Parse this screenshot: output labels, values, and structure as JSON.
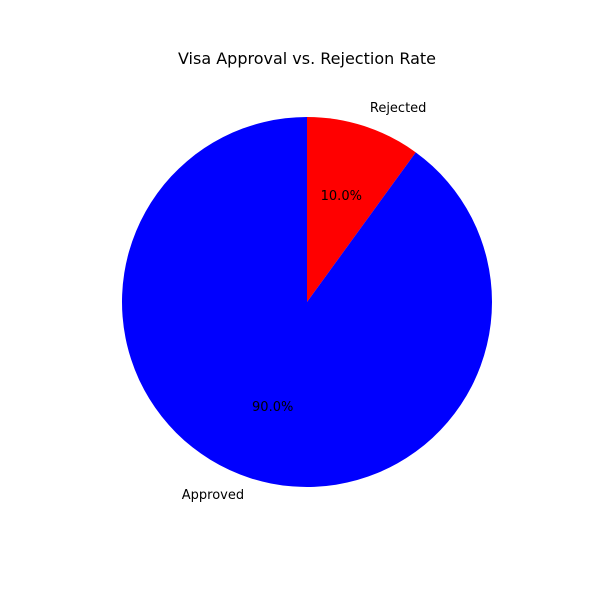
{
  "chart_data": {
    "type": "pie",
    "title": "Visa Approval vs. Rejection Rate",
    "categories": [
      "Rejected",
      "Approved"
    ],
    "values": [
      10.0,
      90.0
    ],
    "percent_labels": [
      "10.0%",
      "90.0%"
    ],
    "colors": [
      "#ff0000",
      "#0000ff"
    ],
    "start_angle_deg": 90,
    "direction": "clockwise"
  }
}
